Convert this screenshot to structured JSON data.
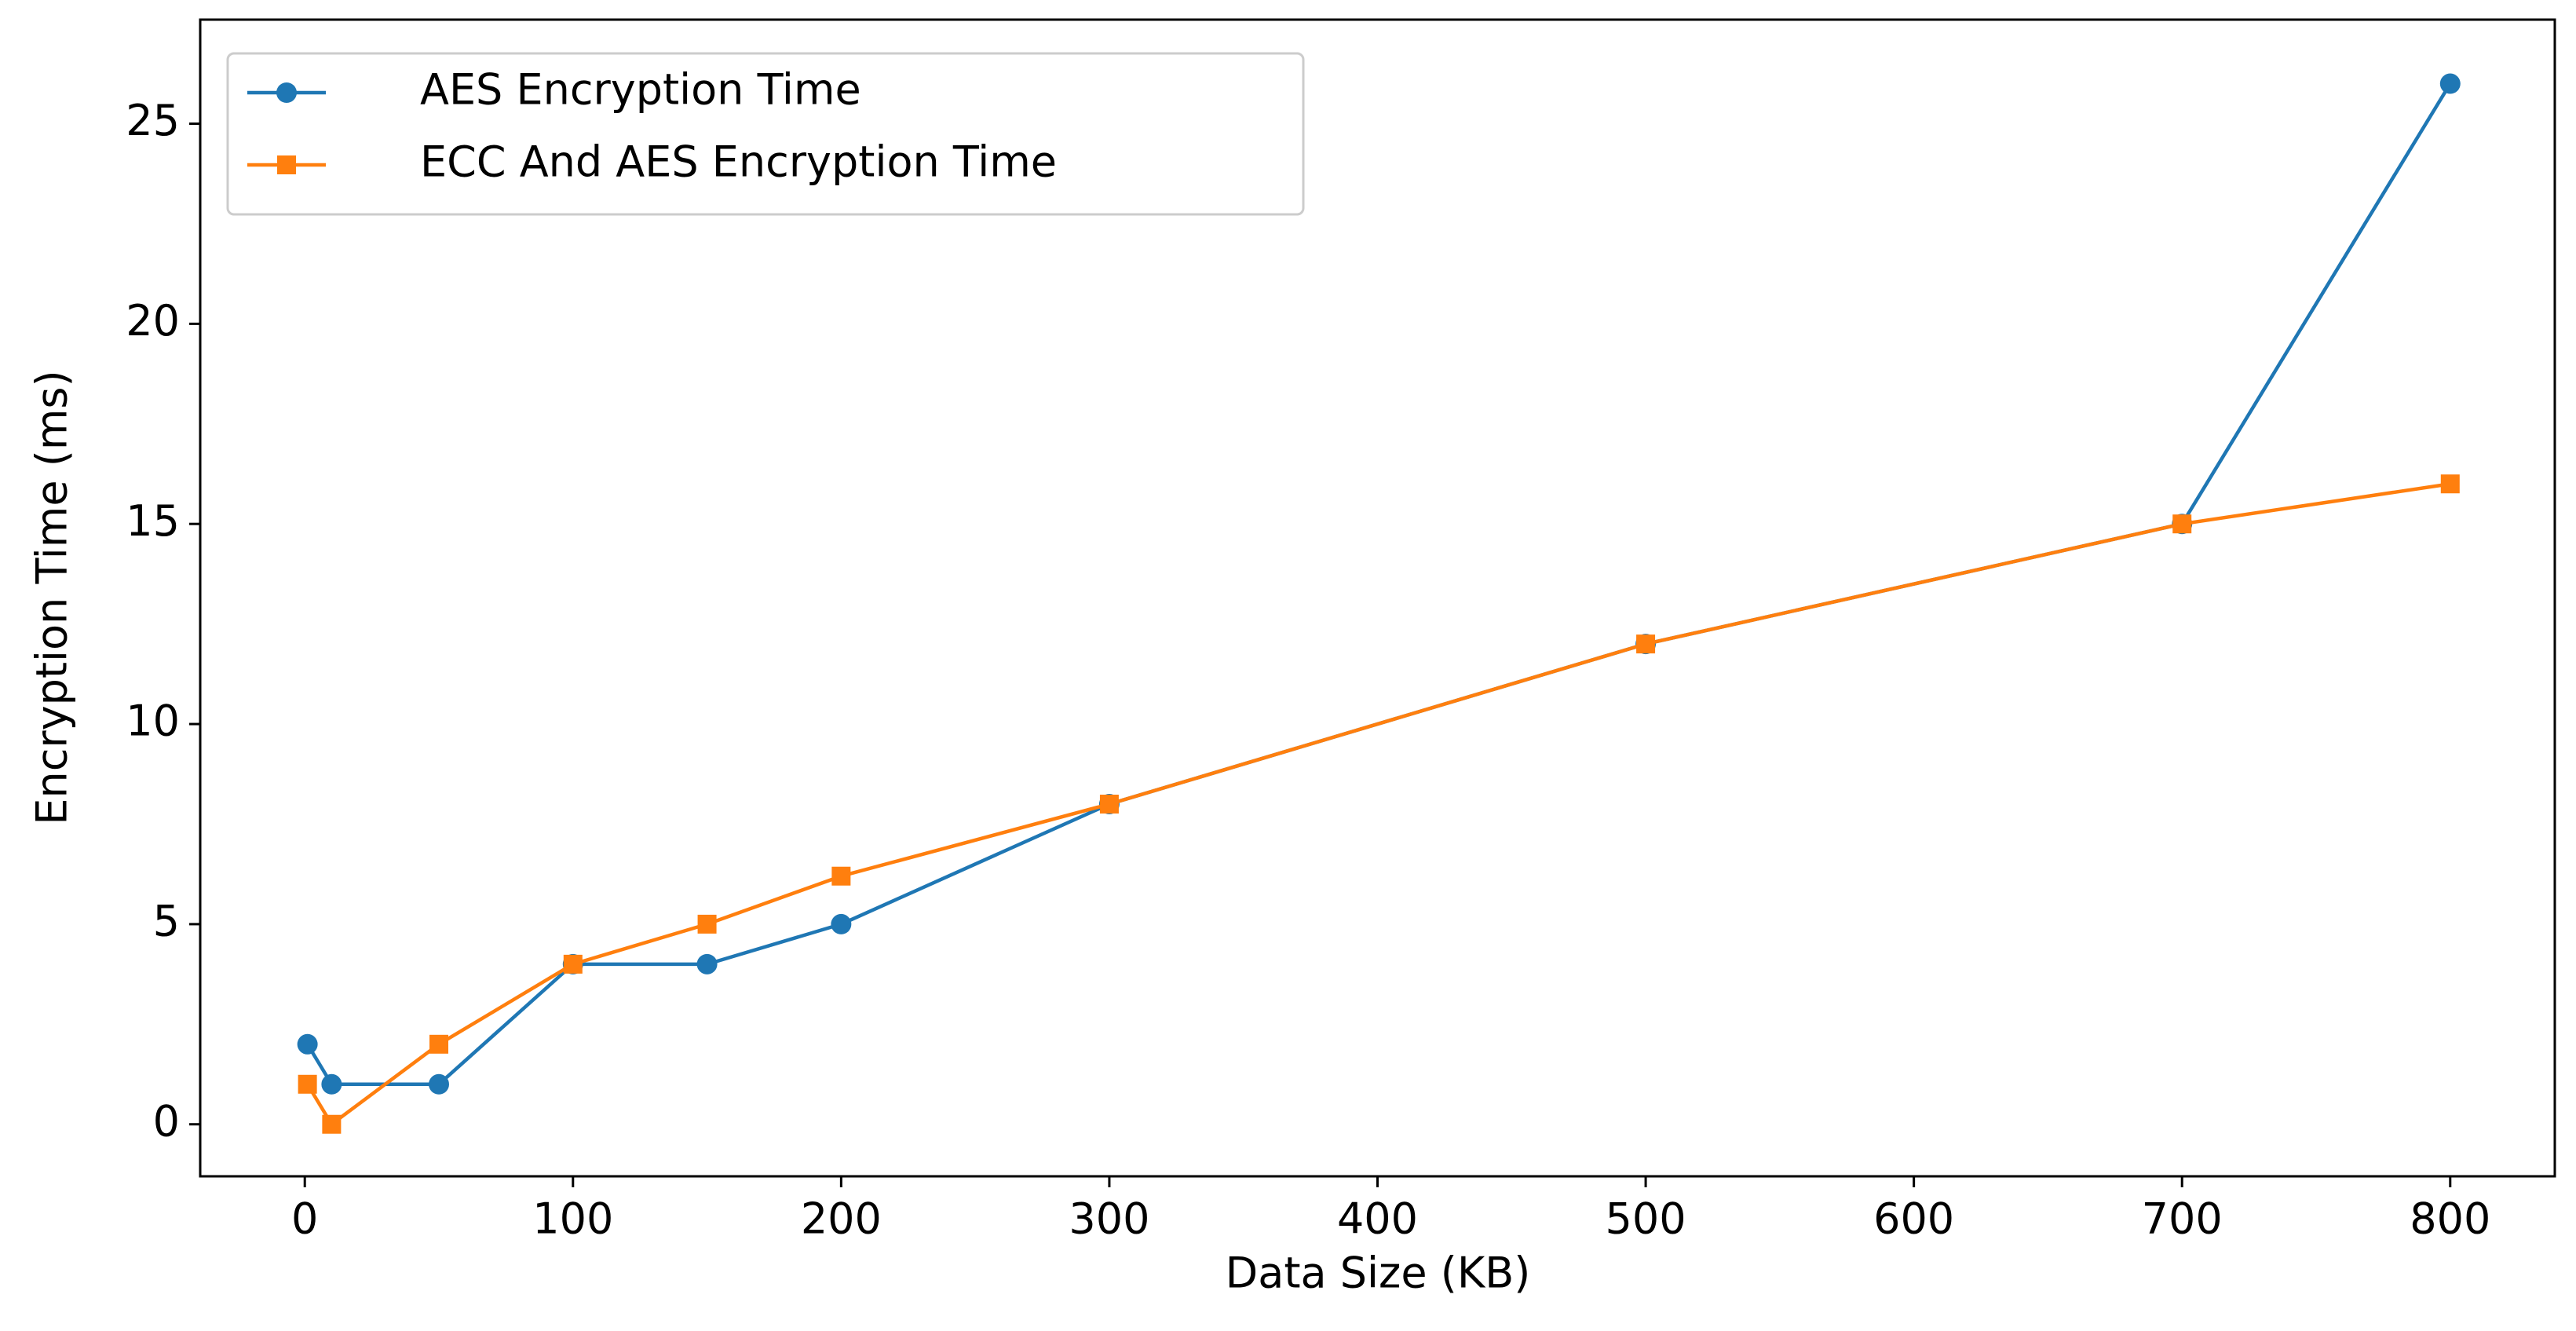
{
  "chart_data": {
    "type": "line",
    "xlabel": "Data Size (KB)",
    "ylabel": "Encryption Time (ms)",
    "x": [
      1,
      10,
      50,
      100,
      150,
      200,
      300,
      500,
      700,
      800
    ],
    "series": [
      {
        "name": "AES Encryption Time",
        "color": "#1f77b4",
        "marker": "circle",
        "values": [
          2,
          1,
          1,
          4,
          4,
          5,
          8,
          12,
          15,
          26
        ]
      },
      {
        "name": "ECC And AES Encryption Time",
        "color": "#ff7f0e",
        "marker": "square",
        "values": [
          1,
          0,
          2,
          4,
          5,
          6.2,
          8,
          12,
          15,
          16
        ]
      }
    ],
    "xlim": [
      -39,
      839
    ],
    "ylim": [
      -1.3,
      27.6
    ],
    "xticks": [
      0,
      100,
      200,
      300,
      400,
      500,
      600,
      700,
      800
    ],
    "yticks": [
      0,
      5,
      10,
      15,
      20,
      25
    ],
    "legend": "upper left",
    "grid": false
  }
}
